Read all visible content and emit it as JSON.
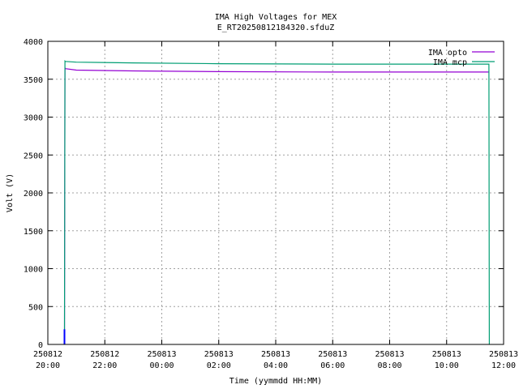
{
  "chart_data": {
    "type": "line",
    "title": "IMA High Voltages for MEX",
    "subtitle": "E_RT20250812184320.sfduZ",
    "xlabel": "Time (yymmdd HH:MM)",
    "ylabel": "Volt (V)",
    "xlim": [
      "2025-08-12 20:00",
      "2025-08-13 12:00"
    ],
    "ylim": [
      0,
      4000
    ],
    "grid": true,
    "legend_position": "top-right",
    "x_ticks": [
      {
        "date": "250812",
        "time": "20:00"
      },
      {
        "date": "250812",
        "time": "22:00"
      },
      {
        "date": "250813",
        "time": "00:00"
      },
      {
        "date": "250813",
        "time": "02:00"
      },
      {
        "date": "250813",
        "time": "04:00"
      },
      {
        "date": "250813",
        "time": "06:00"
      },
      {
        "date": "250813",
        "time": "08:00"
      },
      {
        "date": "250813",
        "time": "10:00"
      },
      {
        "date": "250813",
        "time": "12:00"
      }
    ],
    "y_ticks": [
      "0",
      "500",
      "1000",
      "1500",
      "2000",
      "2500",
      "3000",
      "3500",
      "4000"
    ],
    "series": [
      {
        "name": "IMA opto",
        "color": "#9400d3",
        "x": [
          "2025-08-12 20:35",
          "2025-08-12 20:36",
          "2025-08-12 20:37",
          "2025-08-12 21:00",
          "2025-08-12 23:00",
          "2025-08-13 02:00",
          "2025-08-13 06:00",
          "2025-08-13 10:00",
          "2025-08-13 11:29"
        ],
        "y": [
          0,
          3650,
          3640,
          3620,
          3610,
          3600,
          3595,
          3595,
          3595
        ]
      },
      {
        "name": "IMA mcp",
        "color": "#009e73",
        "x": [
          "2025-08-12 20:35",
          "2025-08-12 20:36",
          "2025-08-12 20:37",
          "2025-08-12 21:00",
          "2025-08-12 23:00",
          "2025-08-13 02:00",
          "2025-08-13 06:00",
          "2025-08-13 10:00",
          "2025-08-13 11:29",
          "2025-08-13 11:30"
        ],
        "y": [
          0,
          3740,
          3735,
          3725,
          3715,
          3705,
          3700,
          3700,
          3700,
          0
        ]
      },
      {
        "name": "",
        "color": "#0000ff",
        "x": [
          "2025-08-12 20:35",
          "2025-08-12 20:35"
        ],
        "y": [
          0,
          200
        ]
      }
    ]
  }
}
